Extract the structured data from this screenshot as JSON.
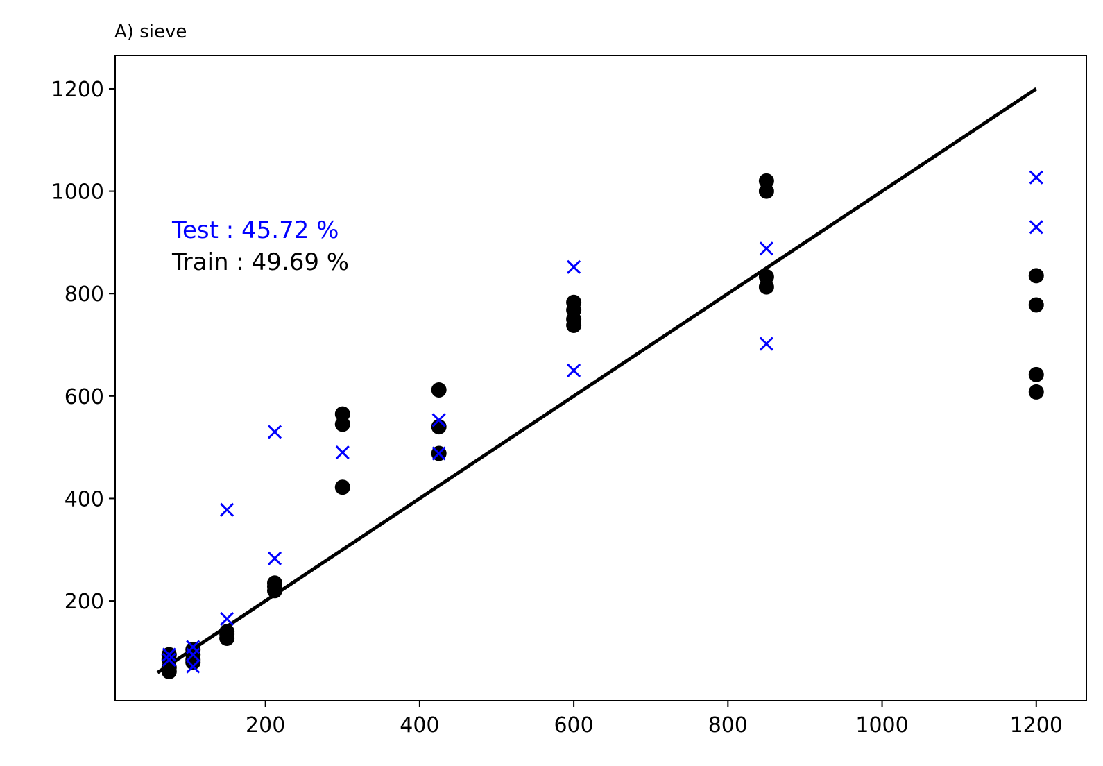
{
  "chart_data": {
    "type": "scatter",
    "title": "A) sieve",
    "xlabel": "",
    "ylabel": "",
    "xlim": [
      5,
      1265
    ],
    "ylim": [
      5,
      1265
    ],
    "grid": false,
    "x_ticks": [
      200,
      400,
      600,
      800,
      1000,
      1200
    ],
    "y_ticks": [
      200,
      400,
      600,
      800,
      1000,
      1200
    ],
    "annotations": {
      "test": "Test : 45.72 %",
      "train": "Train : 49.69 %"
    },
    "colors": {
      "test": "#0000ff",
      "train": "#000000",
      "line": "#000000"
    },
    "reference_line": {
      "x": [
        60,
        1200
      ],
      "y": [
        60,
        1200
      ]
    },
    "series": [
      {
        "marker": "circle",
        "color": "#000000",
        "points": [
          [
            75,
            95
          ],
          [
            75,
            85
          ],
          [
            75,
            70
          ],
          [
            75,
            62
          ],
          [
            106,
            105
          ],
          [
            106,
            95
          ],
          [
            106,
            85
          ],
          [
            106,
            80
          ],
          [
            150,
            140
          ],
          [
            150,
            135
          ],
          [
            150,
            127
          ],
          [
            212,
            235
          ],
          [
            212,
            228
          ],
          [
            212,
            220
          ],
          [
            300,
            565
          ],
          [
            300,
            545
          ],
          [
            300,
            422
          ],
          [
            425,
            612
          ],
          [
            425,
            540
          ],
          [
            425,
            488
          ],
          [
            600,
            783
          ],
          [
            600,
            768
          ],
          [
            600,
            750
          ],
          [
            600,
            738
          ],
          [
            850,
            1020
          ],
          [
            850,
            1000
          ],
          [
            850,
            833
          ],
          [
            850,
            813
          ],
          [
            1200,
            835
          ],
          [
            1200,
            778
          ],
          [
            1200,
            642
          ],
          [
            1200,
            608
          ]
        ]
      },
      {
        "marker": "x",
        "color": "#0000ff",
        "points": [
          [
            75,
            95
          ],
          [
            75,
            85
          ],
          [
            106,
            110
          ],
          [
            106,
            95
          ],
          [
            106,
            72
          ],
          [
            150,
            378
          ],
          [
            150,
            165
          ],
          [
            212,
            530
          ],
          [
            212,
            283
          ],
          [
            300,
            490
          ],
          [
            425,
            553
          ],
          [
            425,
            488
          ],
          [
            600,
            852
          ],
          [
            600,
            650
          ],
          [
            850,
            888
          ],
          [
            850,
            702
          ],
          [
            1200,
            1027
          ],
          [
            1200,
            930
          ]
        ]
      }
    ]
  }
}
